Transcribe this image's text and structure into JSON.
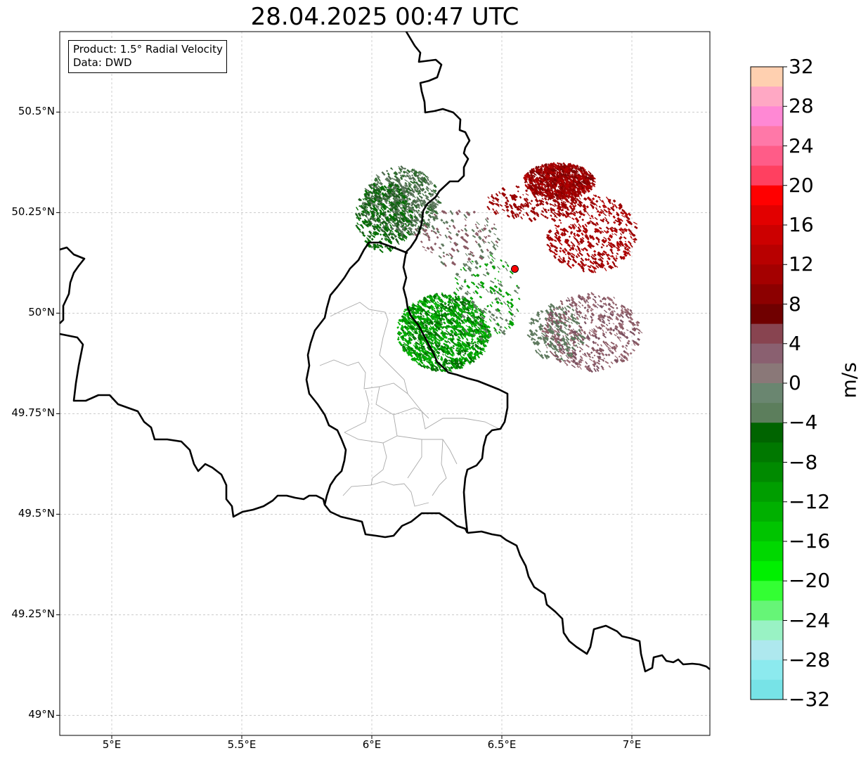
{
  "title": "28.04.2025 00:47 UTC",
  "info": {
    "product": "Product: 1.5° Radial Velocity",
    "source": "Data: DWD"
  },
  "lat_labels": [
    "50.5°N",
    "50.25°N",
    "50°N",
    "49.75°N",
    "49.5°N",
    "49.25°N",
    "49°N"
  ],
  "lat_values": [
    50.5,
    50.25,
    50.0,
    49.75,
    49.5,
    49.25,
    49.0
  ],
  "lon_labels": [
    "5°E",
    "5.5°E",
    "6°E",
    "6.5°E",
    "7°E"
  ],
  "lon_values": [
    5.0,
    5.5,
    6.0,
    6.5,
    7.0
  ],
  "extent": {
    "lon_min": 4.8,
    "lon_max": 7.3,
    "lat_min": 48.95,
    "lat_max": 50.7
  },
  "radar_site": {
    "lon": 6.55,
    "lat": 50.11,
    "color": "#ff0000"
  },
  "colorbar": {
    "unit": "m/s",
    "min": -32,
    "max": 32,
    "tick_labels": [
      "32",
      "28",
      "24",
      "20",
      "16",
      "12",
      "8",
      "4",
      "0",
      "−4",
      "−8",
      "−12",
      "−16",
      "−20",
      "−24",
      "−28",
      "−32"
    ],
    "colors_top_to_bottom": [
      "#ffd0b0",
      "#ffa8c4",
      "#ff88d4",
      "#ff78a8",
      "#ff5c88",
      "#ff4060",
      "#ff0000",
      "#e20000",
      "#cc0000",
      "#b80000",
      "#a40000",
      "#8c0000",
      "#700000",
      "#884450",
      "#8a6070",
      "#8a7878",
      "#6a8670",
      "#5c7e5c",
      "#006400",
      "#007800",
      "#008a00",
      "#009e00",
      "#00b000",
      "#00c400",
      "#00d800",
      "#00f000",
      "#33ff33",
      "#66f577",
      "#99f2c4",
      "#aee8ee",
      "#8ceaee",
      "#77e3e7"
    ]
  },
  "colors": {
    "border": "#000000",
    "admin": "#aaaaaa",
    "grid": "#bbbbbb",
    "inbound_dark": "#006e00",
    "inbound": "#00a000",
    "neutral_green": "#5f7a5f",
    "neutral_red": "#8a5a64",
    "outbound": "#9a0000"
  }
}
